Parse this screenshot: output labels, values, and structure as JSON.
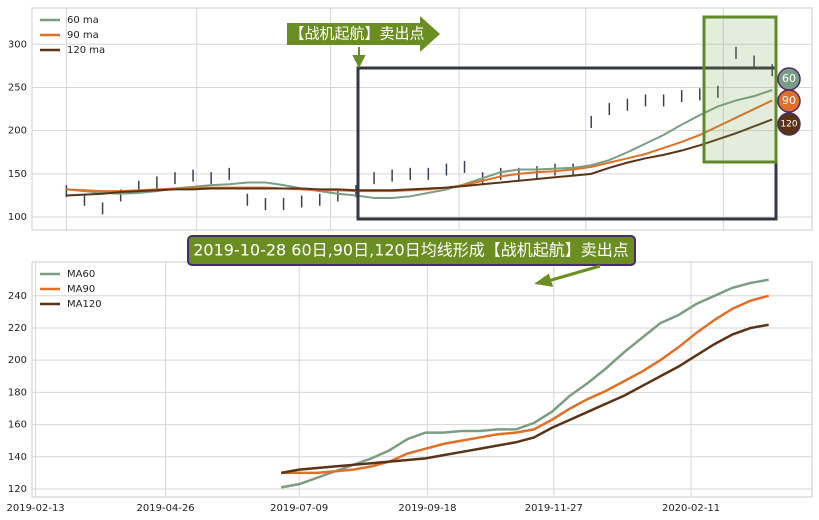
{
  "chart_data": [
    {
      "type": "candlestick_ma",
      "annotation": "【战机起航】卖出点",
      "end_labels": [
        "60",
        "90",
        "120"
      ],
      "xlim": [
        -19,
        412
      ],
      "ylim": [
        85,
        342
      ],
      "xticks": [
        0,
        72,
        146,
        217,
        287,
        363
      ],
      "yticks": [
        100,
        150,
        200,
        250,
        300
      ],
      "grid": true,
      "legend": "upper left",
      "x": [
        0,
        10,
        20,
        30,
        40,
        50,
        60,
        70,
        80,
        90,
        100,
        110,
        120,
        130,
        140,
        150,
        160,
        170,
        180,
        190,
        200,
        210,
        220,
        230,
        240,
        250,
        260,
        270,
        280,
        290,
        300,
        310,
        320,
        330,
        340,
        350,
        360,
        370,
        380,
        390
      ],
      "price": [
        130,
        120,
        110,
        125,
        135,
        140,
        145,
        148,
        145,
        150,
        120,
        115,
        115,
        118,
        120,
        125,
        130,
        145,
        148,
        150,
        150,
        155,
        158,
        145,
        150,
        150,
        152,
        155,
        155,
        210,
        225,
        230,
        235,
        235,
        240,
        242,
        245,
        290,
        280,
        270
      ],
      "price_color": "#3a4150",
      "series": [
        {
          "name": "60 ma",
          "color": "#7a9e84",
          "values": [
            132,
            130,
            128,
            127,
            128,
            130,
            133,
            135,
            137,
            138,
            140,
            140,
            137,
            133,
            130,
            127,
            125,
            122,
            122,
            124,
            128,
            132,
            138,
            145,
            152,
            155,
            155,
            156,
            157,
            160,
            166,
            175,
            185,
            195,
            207,
            218,
            228,
            235,
            240,
            247
          ]
        },
        {
          "name": "90 ma",
          "color": "#e07028",
          "values": [
            132,
            131,
            130,
            130,
            131,
            132,
            133,
            134,
            134,
            134,
            134,
            134,
            133,
            132,
            131,
            131,
            130,
            130,
            130,
            131,
            132,
            134,
            137,
            142,
            147,
            150,
            152,
            153,
            155,
            158,
            163,
            168,
            173,
            180,
            187,
            195,
            205,
            215,
            225,
            235
          ]
        },
        {
          "name": "120 ma",
          "color": "#5b3417",
          "values": [
            125,
            126,
            127,
            129,
            130,
            131,
            132,
            132,
            133,
            133,
            133,
            133,
            133,
            133,
            132,
            132,
            131,
            131,
            131,
            132,
            133,
            134,
            136,
            138,
            140,
            142,
            144,
            146,
            148,
            150,
            157,
            163,
            168,
            172,
            177,
            183,
            190,
            197,
            205,
            213
          ]
        }
      ]
    },
    {
      "type": "line",
      "annotation": "2019-10-28 60日,90日,120日均线形成【战机起航】卖出点",
      "xlim": [
        -2,
        430
      ],
      "ylim": [
        115,
        261
      ],
      "xticks": [
        {
          "value": 0,
          "label": "2019-02-13"
        },
        {
          "value": 72,
          "label": "2019-04-26"
        },
        {
          "value": 146,
          "label": "2019-07-09"
        },
        {
          "value": 217,
          "label": "2019-09-18"
        },
        {
          "value": 287,
          "label": "2019-11-27"
        },
        {
          "value": 363,
          "label": "2020-02-11"
        }
      ],
      "yticks": [
        120,
        140,
        160,
        180,
        200,
        220,
        240
      ],
      "grid": true,
      "legend": "upper left",
      "x": [
        136,
        146,
        156,
        166,
        176,
        186,
        196,
        206,
        216,
        226,
        236,
        246,
        256,
        266,
        276,
        286,
        296,
        306,
        316,
        326,
        336,
        346,
        356,
        366,
        376,
        386,
        396,
        406
      ],
      "series": [
        {
          "name": "MA60",
          "color": "#7a9e84",
          "values": [
            121,
            123,
            127,
            131,
            135,
            139,
            144,
            151,
            155,
            155,
            156,
            156,
            157,
            157,
            161,
            168,
            178,
            186,
            195,
            205,
            214,
            223,
            228,
            235,
            240,
            245,
            248,
            250
          ]
        },
        {
          "name": "MA90",
          "color": "#e07028",
          "values": [
            130,
            130,
            130,
            131,
            132,
            134,
            137,
            142,
            145,
            148,
            150,
            152,
            154,
            155,
            157,
            163,
            170,
            176,
            181,
            187,
            193,
            200,
            208,
            217,
            225,
            232,
            237,
            240
          ]
        },
        {
          "name": "MA120",
          "color": "#5b3417",
          "values": [
            130,
            132,
            133,
            134,
            135,
            136,
            137,
            138,
            139,
            141,
            143,
            145,
            147,
            149,
            152,
            158,
            163,
            168,
            173,
            178,
            184,
            190,
            196,
            203,
            210,
            216,
            220,
            222
          ]
        }
      ]
    }
  ]
}
